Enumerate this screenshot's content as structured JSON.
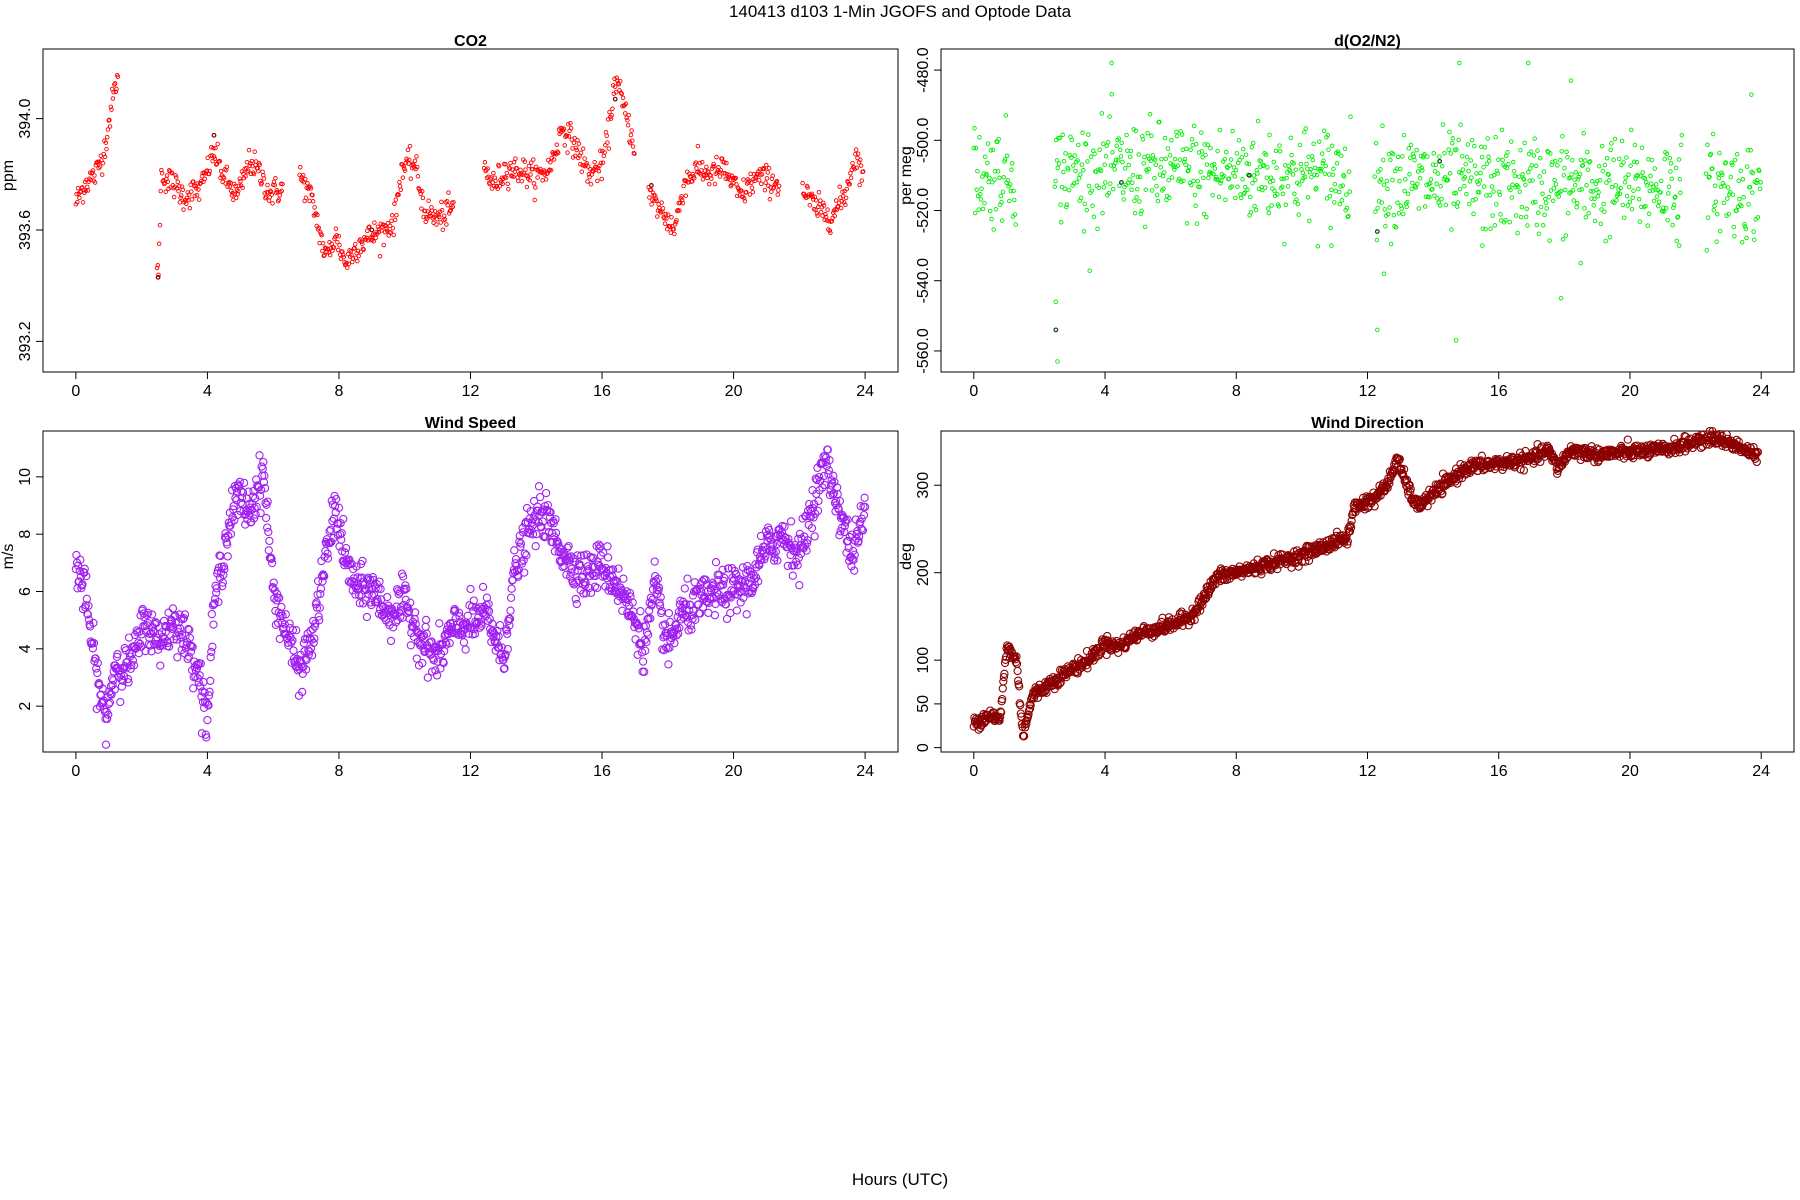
{
  "page": {
    "title": "140413   d103   1-Min  JGOFS and Optode Data",
    "xlabel": "Hours (UTC)"
  },
  "chart_data": [
    {
      "type": "scatter",
      "title": "CO2",
      "ylabel": "ppm",
      "xlim": [
        -1,
        25
      ],
      "ylim": [
        393.09,
        394.25
      ],
      "xticks": [
        0,
        4,
        8,
        12,
        16,
        20,
        24
      ],
      "yticks": [
        393.2,
        393.6,
        394.0
      ],
      "color": "#ff0000",
      "dark_points_color": "#8b0000",
      "dark_points": [
        [
          2.5,
          393.43
        ],
        [
          4.2,
          393.94
        ],
        [
          9.0,
          393.6
        ],
        [
          16.4,
          394.07
        ],
        [
          17.5,
          393.76
        ]
      ],
      "gaps": [
        [
          1.3,
          2.45
        ],
        [
          6.3,
          6.8
        ],
        [
          11.5,
          12.4
        ],
        [
          17.0,
          17.4
        ],
        [
          21.4,
          22.1
        ]
      ],
      "anchors": [
        [
          0.0,
          393.7
        ],
        [
          0.3,
          393.77
        ],
        [
          0.6,
          393.8
        ],
        [
          0.85,
          393.88
        ],
        [
          1.05,
          394.02
        ],
        [
          1.25,
          394.15
        ],
        [
          2.5,
          393.43
        ],
        [
          2.6,
          393.8
        ],
        [
          3.0,
          393.76
        ],
        [
          3.3,
          393.72
        ],
        [
          3.8,
          393.75
        ],
        [
          4.2,
          393.88
        ],
        [
          4.5,
          393.79
        ],
        [
          4.9,
          393.72
        ],
        [
          5.3,
          393.85
        ],
        [
          5.6,
          393.8
        ],
        [
          5.9,
          393.73
        ],
        [
          6.3,
          393.75
        ],
        [
          6.8,
          393.8
        ],
        [
          7.2,
          393.7
        ],
        [
          7.6,
          393.5
        ],
        [
          7.9,
          393.58
        ],
        [
          8.2,
          393.48
        ],
        [
          8.6,
          393.55
        ],
        [
          9.0,
          393.58
        ],
        [
          9.4,
          393.6
        ],
        [
          9.7,
          393.64
        ],
        [
          9.9,
          393.82
        ],
        [
          10.3,
          393.84
        ],
        [
          10.6,
          393.67
        ],
        [
          11.0,
          393.64
        ],
        [
          11.4,
          393.67
        ],
        [
          12.4,
          393.83
        ],
        [
          12.7,
          393.76
        ],
        [
          13.1,
          393.82
        ],
        [
          13.6,
          393.81
        ],
        [
          14.0,
          393.79
        ],
        [
          14.4,
          393.82
        ],
        [
          14.8,
          393.97
        ],
        [
          15.2,
          393.9
        ],
        [
          15.6,
          393.8
        ],
        [
          16.0,
          393.83
        ],
        [
          16.2,
          393.95
        ],
        [
          16.4,
          394.15
        ],
        [
          17.4,
          393.73
        ],
        [
          17.8,
          393.67
        ],
        [
          18.2,
          393.6
        ],
        [
          18.5,
          393.77
        ],
        [
          18.9,
          393.82
        ],
        [
          19.3,
          393.8
        ],
        [
          19.7,
          393.82
        ],
        [
          20.2,
          393.72
        ],
        [
          20.7,
          393.79
        ],
        [
          21.3,
          393.77
        ],
        [
          22.1,
          393.74
        ],
        [
          22.5,
          393.68
        ],
        [
          23.0,
          393.65
        ],
        [
          23.4,
          393.73
        ],
        [
          23.7,
          393.87
        ],
        [
          23.95,
          393.8
        ]
      ],
      "noise": 0.025
    },
    {
      "type": "scatter",
      "title": "d(O2/N2)",
      "ylabel": "per meg",
      "xlim": [
        -1,
        25
      ],
      "ylim": [
        -566,
        -474
      ],
      "xticks": [
        0,
        4,
        8,
        12,
        16,
        20,
        24
      ],
      "yticks": [
        -560,
        -540,
        -520,
        -500,
        -480
      ],
      "color": "#00ee00",
      "dark_points_color": "#004d00",
      "dark_points": [
        [
          2.5,
          -554
        ],
        [
          12.3,
          -526
        ],
        [
          4.5,
          -512
        ],
        [
          8.4,
          -510
        ],
        [
          14.2,
          -506
        ]
      ],
      "gaps": [
        [
          1.3,
          2.45
        ],
        [
          11.5,
          12.2
        ],
        [
          21.6,
          22.3
        ]
      ],
      "anchors": [
        [
          0.0,
          -510
        ],
        [
          2.5,
          -509
        ],
        [
          6.0,
          -509
        ],
        [
          11.5,
          -510
        ],
        [
          12.2,
          -511
        ],
        [
          17.0,
          -513
        ],
        [
          21.6,
          -513
        ],
        [
          22.3,
          -513
        ],
        [
          24.0,
          -515
        ]
      ],
      "noise": 7,
      "outliers": [
        [
          2.5,
          -546
        ],
        [
          2.55,
          -563
        ],
        [
          4.2,
          -478
        ],
        [
          5.3,
          -498
        ],
        [
          12.3,
          -554
        ],
        [
          12.5,
          -538
        ],
        [
          14.8,
          -478
        ],
        [
          14.7,
          -557
        ],
        [
          15.5,
          -530
        ],
        [
          16.9,
          -478
        ],
        [
          17.9,
          -545
        ],
        [
          18.2,
          -483
        ],
        [
          18.5,
          -535
        ],
        [
          21.5,
          -530
        ],
        [
          23.7,
          -487
        ],
        [
          10.9,
          -530
        ]
      ]
    },
    {
      "type": "scatter",
      "title": "Wind Speed",
      "ylabel": "m/s",
      "xlim": [
        -1,
        25
      ],
      "ylim": [
        0.4,
        11.6
      ],
      "xticks": [
        0,
        4,
        8,
        12,
        16,
        20,
        24
      ],
      "yticks": [
        2,
        4,
        6,
        8,
        10
      ],
      "color": "#a020f0",
      "anchors": [
        [
          0.0,
          7.0
        ],
        [
          0.3,
          5.8
        ],
        [
          0.6,
          3.3
        ],
        [
          0.9,
          1.5
        ],
        [
          1.2,
          3.5
        ],
        [
          1.5,
          3.3
        ],
        [
          1.8,
          3.8
        ],
        [
          2.1,
          5.0
        ],
        [
          2.5,
          4.2
        ],
        [
          3.0,
          5.0
        ],
        [
          3.4,
          4.2
        ],
        [
          3.7,
          3.4
        ],
        [
          4.0,
          1.5
        ],
        [
          4.2,
          5.5
        ],
        [
          4.6,
          8.0
        ],
        [
          4.9,
          9.3
        ],
        [
          5.3,
          8.8
        ],
        [
          5.7,
          10.2
        ],
        [
          6.0,
          6.0
        ],
        [
          6.4,
          4.6
        ],
        [
          6.8,
          3.2
        ],
        [
          7.2,
          4.4
        ],
        [
          7.5,
          6.5
        ],
        [
          7.9,
          9.0
        ],
        [
          8.2,
          7.0
        ],
        [
          8.6,
          6.0
        ],
        [
          9.0,
          6.1
        ],
        [
          9.5,
          5.2
        ],
        [
          10.0,
          5.6
        ],
        [
          10.5,
          4.3
        ],
        [
          11.0,
          3.6
        ],
        [
          11.4,
          4.6
        ],
        [
          12.0,
          4.9
        ],
        [
          12.5,
          5.2
        ],
        [
          13.0,
          3.6
        ],
        [
          13.3,
          6.5
        ],
        [
          13.8,
          8.2
        ],
        [
          14.2,
          8.8
        ],
        [
          14.6,
          7.8
        ],
        [
          15.0,
          7.0
        ],
        [
          15.5,
          6.5
        ],
        [
          16.0,
          7.0
        ],
        [
          16.5,
          6.2
        ],
        [
          17.0,
          5.0
        ],
        [
          17.3,
          4.0
        ],
        [
          17.6,
          6.2
        ],
        [
          18.0,
          4.0
        ],
        [
          18.4,
          5.2
        ],
        [
          19.0,
          5.6
        ],
        [
          19.5,
          6.0
        ],
        [
          20.0,
          6.0
        ],
        [
          20.5,
          6.3
        ],
        [
          21.0,
          7.5
        ],
        [
          21.5,
          8.0
        ],
        [
          22.0,
          7.2
        ],
        [
          22.4,
          9.0
        ],
        [
          22.8,
          10.5
        ],
        [
          23.2,
          9.0
        ],
        [
          23.6,
          7.2
        ],
        [
          24.0,
          8.8
        ]
      ],
      "noise": 0.4
    },
    {
      "type": "scatter",
      "title": "Wind Direction",
      "ylabel": "deg",
      "xlim": [
        -1,
        25
      ],
      "ylim": [
        -5,
        362
      ],
      "xticks": [
        0,
        4,
        8,
        12,
        16,
        20,
        24
      ],
      "yticks": [
        0,
        50,
        100,
        200,
        300
      ],
      "color": "#8b0000",
      "anchors": [
        [
          0.0,
          28
        ],
        [
          0.5,
          38
        ],
        [
          0.8,
          30
        ],
        [
          1.0,
          115
        ],
        [
          1.3,
          100
        ],
        [
          1.5,
          15
        ],
        [
          1.8,
          60
        ],
        [
          2.5,
          78
        ],
        [
          3.0,
          90
        ],
        [
          3.5,
          100
        ],
        [
          4.0,
          120
        ],
        [
          4.4,
          115
        ],
        [
          5.0,
          130
        ],
        [
          6.0,
          140
        ],
        [
          6.6,
          150
        ],
        [
          7.0,
          170
        ],
        [
          7.4,
          195
        ],
        [
          8.0,
          200
        ],
        [
          9.0,
          210
        ],
        [
          10.0,
          220
        ],
        [
          11.0,
          235
        ],
        [
          11.4,
          240
        ],
        [
          11.6,
          275
        ],
        [
          12.2,
          285
        ],
        [
          12.6,
          300
        ],
        [
          12.9,
          330
        ],
        [
          13.2,
          300
        ],
        [
          13.5,
          275
        ],
        [
          14.0,
          290
        ],
        [
          14.5,
          305
        ],
        [
          15.0,
          320
        ],
        [
          16.0,
          325
        ],
        [
          17.0,
          330
        ],
        [
          17.5,
          340
        ],
        [
          17.8,
          320
        ],
        [
          18.2,
          340
        ],
        [
          19.0,
          335
        ],
        [
          20.0,
          338
        ],
        [
          21.0,
          340
        ],
        [
          22.0,
          350
        ],
        [
          22.5,
          355
        ],
        [
          23.3,
          345
        ],
        [
          23.9,
          332
        ]
      ],
      "noise": 4
    }
  ]
}
